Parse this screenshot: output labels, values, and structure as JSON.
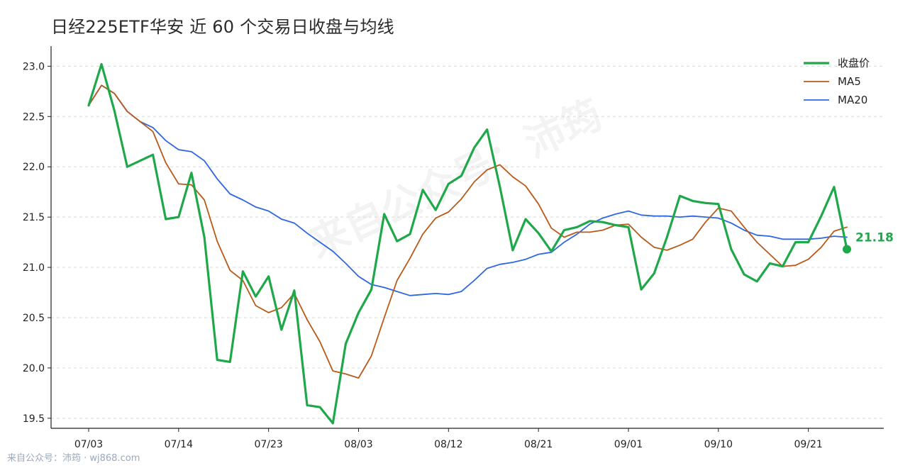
{
  "title": "日经225ETF华安 近 60 个交易日收盘与均线",
  "footer": "来自公众号：沛筠 · wj868.com",
  "watermark": "来自公众号：沛筠",
  "colors": {
    "close": "#1fa84a",
    "ma5": "#b85a1a",
    "ma20": "#2e67e0"
  },
  "chart_data": {
    "type": "line",
    "xlabel": "",
    "ylabel": "",
    "ylim": [
      19.4,
      23.2
    ],
    "yticks": [
      19.5,
      20.0,
      20.5,
      21.0,
      21.5,
      22.0,
      22.5,
      23.0
    ],
    "ytick_labels": [
      "19.5",
      "20.0",
      "20.5",
      "21.0",
      "21.5",
      "22.0",
      "22.5",
      "23.0"
    ],
    "x_tick_positions": [
      0,
      7,
      14,
      21,
      28,
      35,
      42,
      49,
      56
    ],
    "x_tick_labels": [
      "07/03",
      "07/14",
      "07/23",
      "08/03",
      "08/12",
      "08/21",
      "09/01",
      "09/10",
      "09/21"
    ],
    "grid": "horizontal dashed",
    "legend_position": "top-right",
    "series": [
      {
        "name": "收盘价",
        "values": [
          22.61,
          23.02,
          22.56,
          22.0,
          22.06,
          22.12,
          21.48,
          21.5,
          21.94,
          21.3,
          20.08,
          20.06,
          20.96,
          20.71,
          20.91,
          20.38,
          20.77,
          19.63,
          19.61,
          19.45,
          20.24,
          20.55,
          20.78,
          21.53,
          21.26,
          21.33,
          21.77,
          21.57,
          21.83,
          21.91,
          22.19,
          22.37,
          21.8,
          21.17,
          21.48,
          21.34,
          21.16,
          21.37,
          21.4,
          21.46,
          21.45,
          21.42,
          21.4,
          20.78,
          20.94,
          21.3,
          21.71,
          21.66,
          21.64,
          21.63,
          21.18,
          20.93,
          20.86,
          21.04,
          21.01,
          21.25,
          21.25,
          21.51,
          21.8,
          21.18
        ]
      },
      {
        "name": "MA5",
        "values": [
          22.61,
          22.81,
          22.73,
          22.55,
          22.45,
          22.35,
          22.04,
          21.83,
          21.82,
          21.67,
          21.26,
          20.97,
          20.87,
          20.62,
          20.55,
          20.6,
          20.74,
          20.48,
          20.26,
          19.97,
          19.94,
          19.9,
          20.12,
          20.5,
          20.87,
          21.09,
          21.33,
          21.49,
          21.55,
          21.68,
          21.85,
          21.97,
          22.02,
          21.9,
          21.81,
          21.63,
          21.39,
          21.3,
          21.35,
          21.35,
          21.37,
          21.42,
          21.43,
          21.3,
          21.2,
          21.17,
          21.22,
          21.28,
          21.45,
          21.59,
          21.56,
          21.4,
          21.25,
          21.13,
          21.01,
          21.02,
          21.08,
          21.2,
          21.36,
          21.4
        ]
      },
      {
        "name": "MA20",
        "values": [
          22.61,
          22.81,
          22.73,
          22.55,
          22.45,
          22.39,
          22.26,
          22.17,
          22.15,
          22.06,
          21.88,
          21.73,
          21.67,
          21.6,
          21.56,
          21.48,
          21.44,
          21.34,
          21.25,
          21.16,
          21.04,
          20.91,
          20.83,
          20.8,
          20.76,
          20.72,
          20.73,
          20.74,
          20.73,
          20.76,
          20.87,
          20.99,
          21.03,
          21.05,
          21.08,
          21.13,
          21.15,
          21.25,
          21.33,
          21.43,
          21.49,
          21.53,
          21.56,
          21.52,
          21.51,
          21.51,
          21.5,
          21.51,
          21.5,
          21.49,
          21.44,
          21.37,
          21.32,
          21.31,
          21.28,
          21.28,
          21.28,
          21.29,
          21.31,
          21.3
        ]
      }
    ],
    "last_label": "21.18"
  }
}
